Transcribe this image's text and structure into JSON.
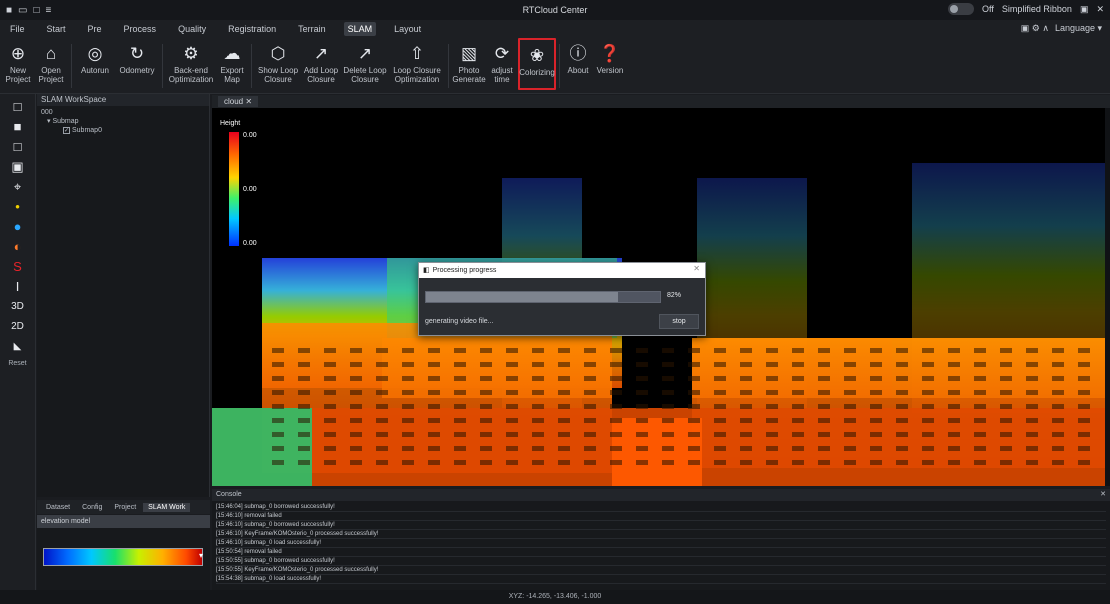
{
  "titlebar": {
    "title": "RTCloud Center",
    "quick_access": [
      "■",
      "▭",
      "□",
      "≡"
    ],
    "toggle_label": "Off",
    "ribbon_mode": "Simplified Ribbon",
    "controls": [
      "▣",
      "✕"
    ]
  },
  "menubar": {
    "tabs": [
      "File",
      "Start",
      "Pre",
      "Process",
      "Quality",
      "Registration",
      "Terrain",
      "SLAM",
      "Layout"
    ],
    "active_tab": "SLAM",
    "right_icons": "▣ ⚙ ∧",
    "language": "Language ▾"
  },
  "ribbon": {
    "buttons": [
      {
        "icon": "⊕",
        "label": "New\nProject",
        "name": "new-project-button"
      },
      {
        "icon": "⌂",
        "label": "Open\nProject",
        "name": "open-project-button"
      },
      {
        "icon": "◎",
        "label": "Autorun",
        "name": "autorun-button"
      },
      {
        "icon": "↻",
        "label": "Odometry",
        "name": "odometry-button"
      },
      {
        "icon": "⚙",
        "label": "Back-end\nOptimization",
        "name": "backend-optimization-button"
      },
      {
        "icon": "☁",
        "label": "Export\nMap",
        "name": "export-map-button"
      },
      {
        "icon": "⬡",
        "label": "Show Loop\nClosure",
        "name": "show-loop-closure-button"
      },
      {
        "icon": "↗",
        "label": "Add Loop\nClosure",
        "name": "add-loop-closure-button"
      },
      {
        "icon": "↗",
        "label": "Delete Loop\nClosure",
        "name": "delete-loop-closure-button"
      },
      {
        "icon": "⇧",
        "label": "Loop Closure\nOptimization",
        "name": "loop-closure-optimization-button"
      },
      {
        "icon": "▧",
        "label": "Photo\nGenerate",
        "name": "photo-generate-button"
      },
      {
        "icon": "⟳",
        "label": "adjust\ntime",
        "name": "adjust-time-button"
      },
      {
        "icon": "❀",
        "label": "Colorizing",
        "name": "colorizing-button",
        "highlight": true
      },
      {
        "icon": "ⓘ",
        "label": "About",
        "name": "about-button"
      },
      {
        "icon": "❓",
        "label": "Version",
        "name": "version-button"
      }
    ]
  },
  "lefttools": [
    "□",
    "■",
    "□",
    "▣",
    "⌖",
    "•",
    "●",
    "◐",
    "S",
    "I",
    "3D",
    "2D",
    "◣"
  ],
  "lefttools_footer": "Reset",
  "workspace": {
    "title": "SLAM WorkSpace",
    "root": "000",
    "group": "Submap",
    "item": "Submap0",
    "item_checked": "✓"
  },
  "bottom_tabs": [
    "Dataset",
    "Config",
    "Project",
    "SLAM Work"
  ],
  "bottom_tabs_active": "SLAM Work",
  "properties": {
    "label": "elevation model"
  },
  "view": {
    "tab_label": "cloud ✕",
    "legend_title": "Height",
    "legend_ticks": [
      "0.00",
      "0.00",
      "0.00"
    ]
  },
  "dialog": {
    "title": "Processing progress",
    "progress_percent": 82,
    "progress_text": "82%",
    "message": "generating video file...",
    "stop_label": "stop",
    "close_label": "✕"
  },
  "console": {
    "title": "Console",
    "close_label": "✕",
    "lines": [
      "[15:46:04] submap_0 borrowed successfully!",
      "[15:46:10] removal failed",
      "[15:46:10] submap_0 borrowed successfully!",
      "[15:46:10] KeyFrame/KOMOsterio_0 processed successfully!",
      "[15:46:10] submap_0 load successfully!",
      "[15:50:54] removal failed",
      "[15:50:55] submap_0 borrowed successfully!",
      "[15:50:55] KeyFrame/KOMOsterio_0 processed successfully!",
      "[15:54:38] submap_0 load successfully!"
    ]
  },
  "statusbar": {
    "text": "XYZ: -14.265, -13.406, -1.000"
  },
  "colors": {
    "highlight": "#d9232a",
    "background": "#1a1c20",
    "dialog_bg": "#2b2e33"
  }
}
